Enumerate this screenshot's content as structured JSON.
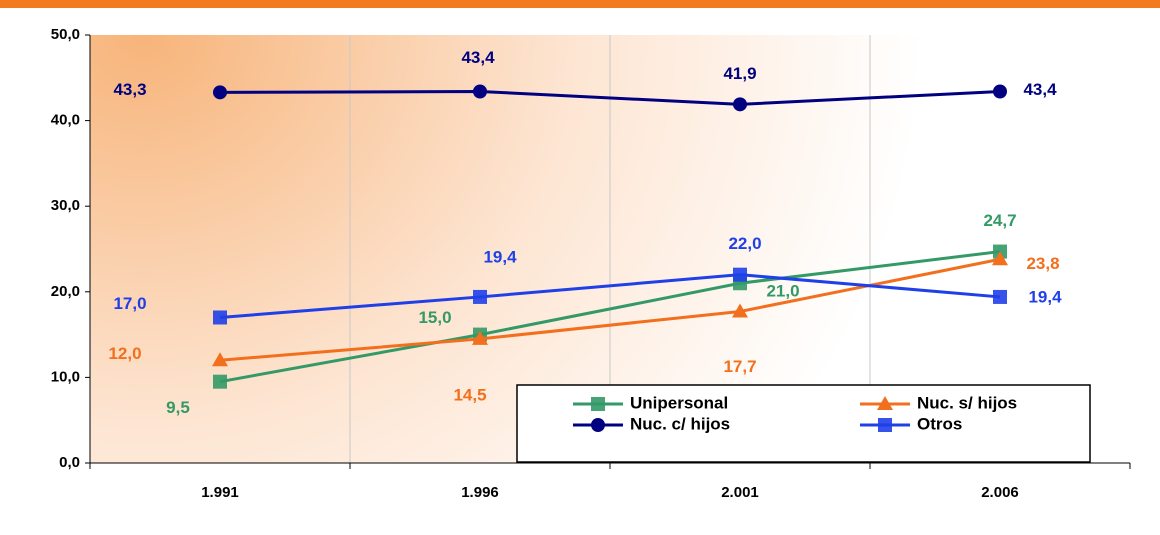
{
  "chart_data": {
    "type": "line",
    "categories": [
      "1.991",
      "1.996",
      "2.001",
      "2.006"
    ],
    "series": [
      {
        "name": "Unipersonal",
        "color": "#339966",
        "marker": "square",
        "values": [
          9.5,
          15.0,
          21.0,
          24.7
        ],
        "value_labels": [
          "9,5",
          "15,0",
          "21,0",
          "24,7"
        ]
      },
      {
        "name": "Nuc. s/ hijos",
        "color": "#f26f1d",
        "marker": "triangle",
        "values": [
          12.0,
          14.5,
          17.7,
          23.8
        ],
        "value_labels": [
          "12,0",
          "14,5",
          "17,7",
          "23,8"
        ]
      },
      {
        "name": "Nuc. c/ hijos",
        "color": "#000080",
        "marker": "circle",
        "values": [
          43.3,
          43.4,
          41.9,
          43.4
        ],
        "value_labels": [
          "43,3",
          "43,4",
          "41,9",
          "43,4"
        ]
      },
      {
        "name": "Otros",
        "color": "#1f3fe8",
        "marker": "square",
        "values": [
          17.0,
          19.4,
          22.0,
          19.4
        ],
        "value_labels": [
          "17,0",
          "19,4",
          "22,0",
          "19,4"
        ]
      }
    ],
    "ylim": [
      0,
      50
    ],
    "yticks": [
      {
        "value": 0,
        "label": "0,0"
      },
      {
        "value": 10,
        "label": "10,0"
      },
      {
        "value": 20,
        "label": "20,0"
      },
      {
        "value": 30,
        "label": "30,0"
      },
      {
        "value": 40,
        "label": "40,0"
      },
      {
        "value": 50,
        "label": "50,0"
      }
    ],
    "grid": true,
    "legend": "bottom-right"
  }
}
